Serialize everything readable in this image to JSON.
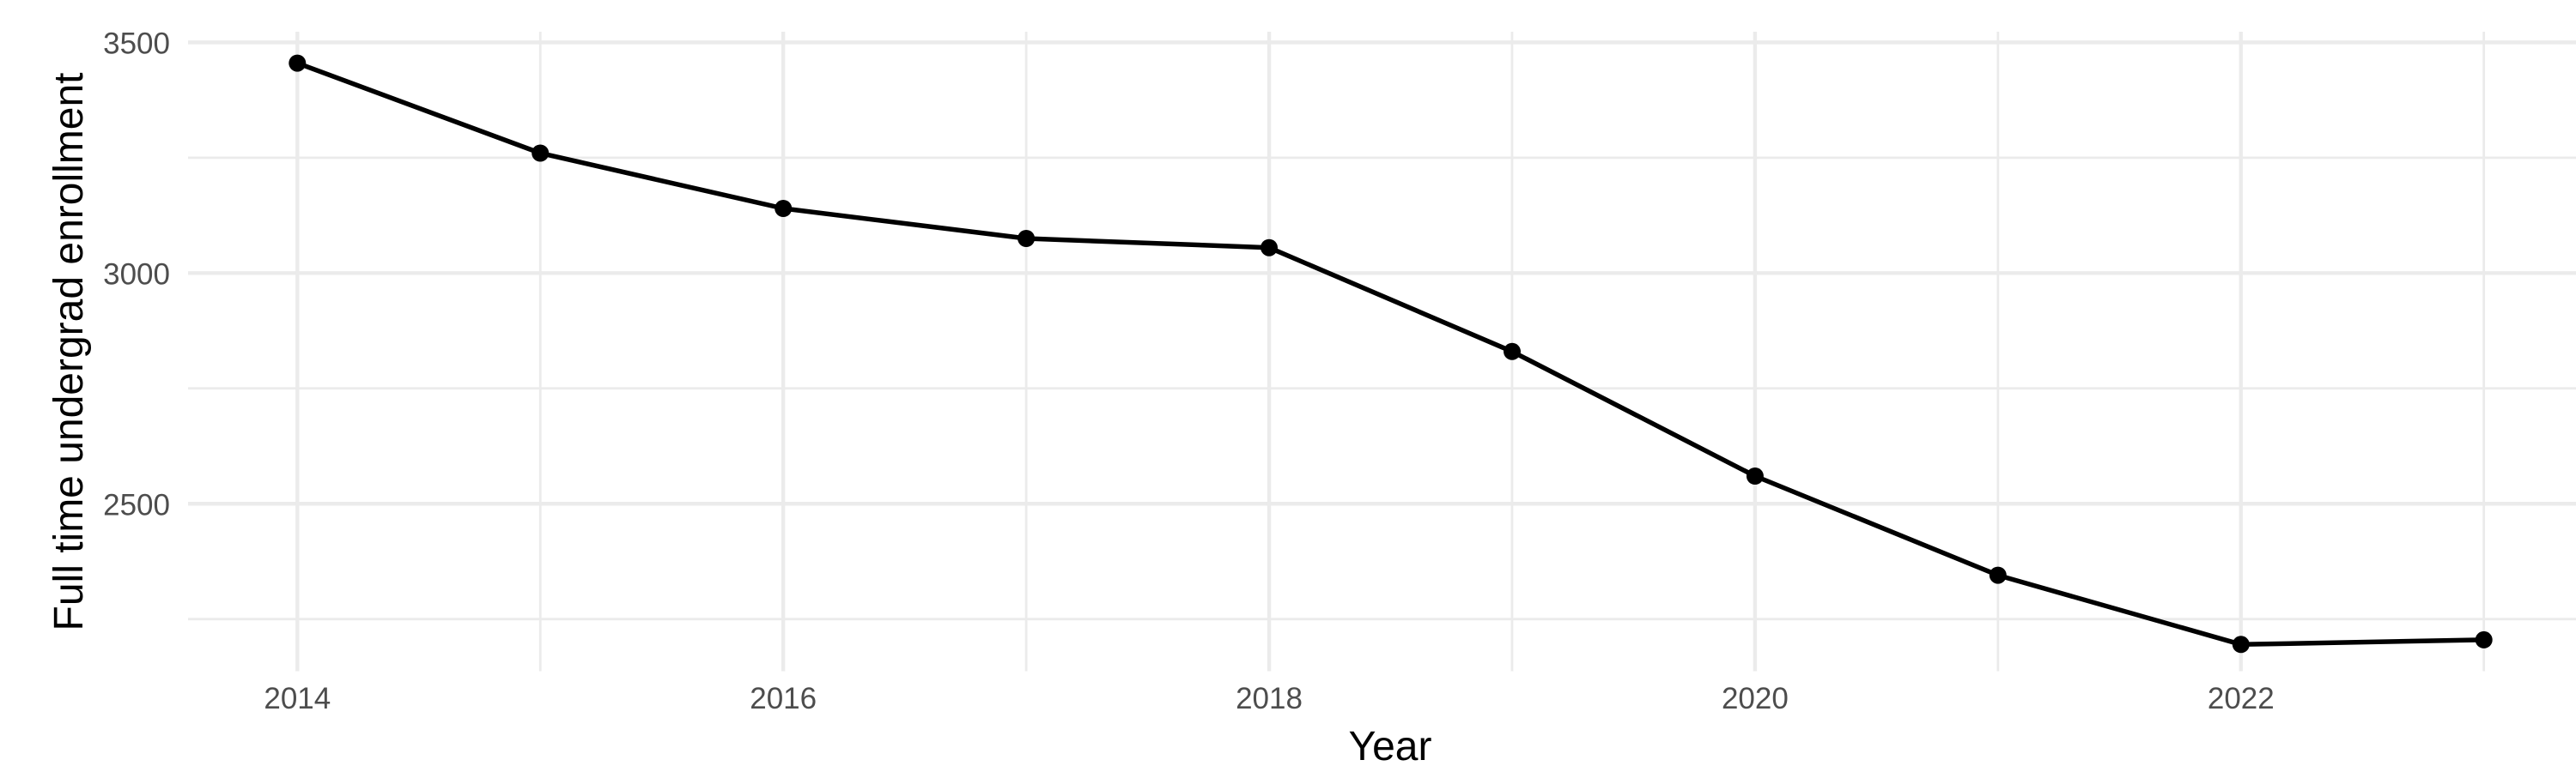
{
  "chart_data": {
    "type": "line",
    "title": "",
    "xlabel": "Year",
    "ylabel": "Full time undergrad enrollment",
    "x": [
      2014,
      2015,
      2016,
      2017,
      2018,
      2019,
      2020,
      2021,
      2022,
      2023
    ],
    "series": [
      {
        "name": "Full time undergrad enrollment",
        "values": [
          3455,
          3260,
          3140,
          3075,
          3055,
          2830,
          2560,
          2345,
          2195,
          2205
        ]
      }
    ],
    "xlim": [
      2013.55,
      2023.45
    ],
    "ylim": [
      2137,
      3523
    ],
    "x_ticks_major": [
      2014,
      2016,
      2018,
      2020,
      2022
    ],
    "x_tick_labels": [
      "2014",
      "2016",
      "2018",
      "2020",
      "2022"
    ],
    "x_ticks_minor": [
      2015,
      2017,
      2019,
      2021,
      2023
    ],
    "y_ticks_major": [
      2500,
      3000,
      3500
    ],
    "y_tick_labels": [
      "2500",
      "3000",
      "3500"
    ],
    "y_ticks_minor": [
      2250,
      2750,
      3250
    ],
    "grid": true,
    "legend_position": "none",
    "colors": {
      "line": "#000000",
      "point": "#000000",
      "grid": "#ebebeb",
      "tick_label": "#4d4d4d",
      "axis_title": "#000000",
      "background": "#ffffff"
    }
  }
}
